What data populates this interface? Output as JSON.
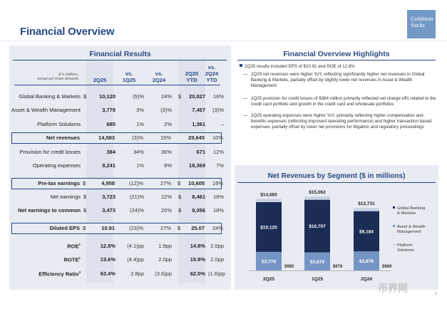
{
  "page": {
    "title": "Financial Overview",
    "logo_line1": "Goldman",
    "logo_line2": "Sachs",
    "page_number": "2",
    "watermark": "币界网"
  },
  "results": {
    "title": "Financial Results",
    "units_note_line1": "$ in millions,",
    "units_note_line2": "except per share amounts",
    "headers": {
      "c2q25": "2Q25",
      "vs1q_line1": "vs.",
      "vs1q_line2": "1Q25",
      "vs2q_line1": "vs.",
      "vs2q_line2": "2Q24",
      "ytd_line1": "2Q25",
      "ytd_line2": "YTD",
      "vsytd_line1": "vs.",
      "vsytd_line2": "2Q24",
      "vsytd_line3": "YTD"
    },
    "rows": [
      {
        "label": "Global Banking & Markets",
        "dollar": "$",
        "q": "10,120",
        "vs1q": "(5)%",
        "vs2q": "24%",
        "dollar2": "$",
        "ytd": "20,827",
        "vsytd": "16%"
      },
      {
        "label": "Asset & Wealth Management",
        "dollar": "",
        "q": "3,778",
        "vs1q": "3%",
        "vs2q": "(3)%",
        "dollar2": "",
        "ytd": "7,457",
        "vsytd": "(3)%"
      },
      {
        "label": "Platform Solutions",
        "dollar": "",
        "q": "685",
        "vs1q": "1%",
        "vs2q": "2%",
        "dollar2": "",
        "ytd": "1,361",
        "vsytd": "–"
      },
      {
        "label": "Net revenues",
        "dollar": "",
        "q": "14,583",
        "vs1q": "(3)%",
        "vs2q": "15%",
        "dollar2": "",
        "ytd": "29,645",
        "vsytd": "10%"
      },
      {
        "label": "Provision for credit losses",
        "dollar": "",
        "q": "384",
        "vs1q": "34%",
        "vs2q": "36%",
        "dollar2": "",
        "ytd": "671",
        "vsytd": "12%"
      },
      {
        "label": "Operating expenses",
        "dollar": "",
        "q": "9,241",
        "vs1q": "1%",
        "vs2q": "8%",
        "dollar2": "",
        "ytd": "18,369",
        "vsytd": "7%"
      },
      {
        "label": "Pre-tax earnings",
        "dollar": "$",
        "q": "4,958",
        "vs1q": "(12)%",
        "vs2q": "27%",
        "dollar2": "$",
        "ytd": "10,605",
        "vsytd": "16%"
      },
      {
        "label": "Net earnings",
        "dollar": "$",
        "q": "3,723",
        "vs1q": "(21)%",
        "vs2q": "22%",
        "dollar2": "$",
        "ytd": "8,461",
        "vsytd": "18%"
      },
      {
        "label": "Net earnings to common",
        "dollar": "$",
        "q": "3,473",
        "vs1q": "(24)%",
        "vs2q": "20%",
        "dollar2": "$",
        "ytd": "8,056",
        "vsytd": "18%"
      },
      {
        "label": "Diluted EPS",
        "dollar": "$",
        "q": "10.91",
        "vs1q": "(23)%",
        "vs2q": "27%",
        "dollar2": "$",
        "ytd": "25.07",
        "vsytd": "24%"
      },
      {
        "label": "ROE",
        "sup": "1",
        "dollar": "",
        "q": "12.8%",
        "vs1q": "(4.1)pp",
        "vs2q": "1.9pp",
        "dollar2": "",
        "ytd": "14.8%",
        "vsytd": "2.0pp"
      },
      {
        "label": "ROTE",
        "sup": "1",
        "dollar": "",
        "q": "13.6%",
        "vs1q": "(4.4)pp",
        "vs2q": "2.0pp",
        "dollar2": "",
        "ytd": "15.8%",
        "vsytd": "2.0pp"
      },
      {
        "label": "Efficiency Ratio",
        "sup": "3",
        "dollar": "",
        "q": "63.4%",
        "vs1q": "2.8pp",
        "vs2q": "(3.6)pp",
        "dollar2": "",
        "ytd": "62.0%",
        "vsytd": "(1.8)pp"
      }
    ]
  },
  "highlights": {
    "title": "Financial Overview Highlights",
    "lead": "2Q25 results included EPS of $10.91 and ROE of 12.8%",
    "bullets": [
      "2Q25 net revenues were higher YoY, reflecting significantly higher net revenues in Global Banking & Markets, partially offset by slightly lower net revenues in Asset & Wealth Management",
      "2Q25 provision for credit losses of $384 million primarily reflected net charge-offs related to the credit card portfolio and growth in the credit card and wholesale portfolios",
      "2Q25 operating expenses were higher YoY, primarily reflecting higher compensation and benefits expenses (reflecting improved operating performance) and higher transaction based expenses, partially offset by lower net provisions for litigation and regulatory proceedings"
    ],
    "dash": "—"
  },
  "chart_data": {
    "type": "bar",
    "stacked": true,
    "title": "Net Revenues by Segment ($ in millions)",
    "categories": [
      "2Q25",
      "1Q25",
      "2Q24"
    ],
    "series": [
      {
        "name": "Global Banking & Markets",
        "values": [
          10120,
          10707,
          8184
        ],
        "labels": [
          "$10,120",
          "$10,707",
          "$8,184"
        ],
        "color": "#1b2d55"
      },
      {
        "name": "Asset & Wealth Management",
        "values": [
          3778,
          3679,
          3878
        ],
        "labels": [
          "$3,778",
          "$3,679",
          "$3,878"
        ],
        "color": "#7595c5"
      },
      {
        "name": "Platform Solutions",
        "values": [
          685,
          676,
          669
        ],
        "labels": [
          "$685",
          "$676",
          "$669"
        ],
        "color": "#c9d2e3"
      }
    ],
    "totals": [
      14583,
      15062,
      12731
    ],
    "total_labels": [
      "$14,583",
      "$15,062",
      "$12,731"
    ],
    "legend_position": "right",
    "legend_labels": [
      "Global Banking\n& Markets",
      "Asset & Wealth\nManagement",
      "Platform\nSolutions"
    ],
    "ylim": [
      0,
      15062
    ]
  },
  "colors": {
    "brand_blue": "#2a4a85",
    "panel_gray": "#e8ebf1",
    "logo_blue": "#7399c6"
  }
}
